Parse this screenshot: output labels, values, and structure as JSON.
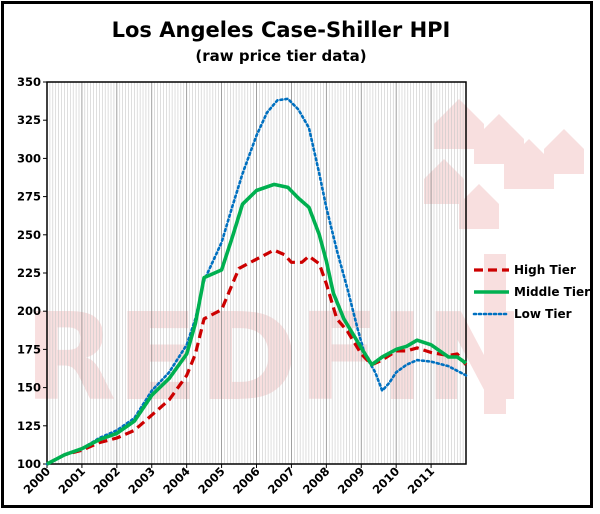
{
  "chart_data": {
    "type": "line",
    "title": "Los Angeles Case-Shiller HPI",
    "subtitle": "(raw price tier data)",
    "xlabel": "",
    "ylabel": "",
    "xlim": [
      2000,
      2012
    ],
    "ylim": [
      100,
      350
    ],
    "y_ticks": [
      "100",
      "125",
      "150",
      "175",
      "200",
      "225",
      "250",
      "275",
      "300",
      "325",
      "350"
    ],
    "x_ticks": [
      "2000",
      "2001",
      "2002",
      "2003",
      "2004",
      "2005",
      "2006",
      "2007",
      "2008",
      "2009",
      "2010",
      "2011"
    ],
    "grid": "vertical-monthly",
    "legend_position": "right",
    "series": [
      {
        "name": "High Tier",
        "color": "#cc0000",
        "style": "dashed",
        "points": [
          [
            2000,
            100
          ],
          [
            2000.5,
            106
          ],
          [
            2001,
            109
          ],
          [
            2001.5,
            114
          ],
          [
            2002,
            117
          ],
          [
            2002.5,
            122
          ],
          [
            2003,
            132
          ],
          [
            2003.5,
            142
          ],
          [
            2004,
            158
          ],
          [
            2004.25,
            172
          ],
          [
            2004.5,
            195
          ],
          [
            2005,
            201
          ],
          [
            2005.5,
            228
          ],
          [
            2006,
            234
          ],
          [
            2006.5,
            240
          ],
          [
            2006.8,
            237
          ],
          [
            2007,
            232
          ],
          [
            2007.3,
            232
          ],
          [
            2007.5,
            236
          ],
          [
            2007.8,
            231
          ],
          [
            2008,
            218
          ],
          [
            2008.3,
            195
          ],
          [
            2008.6,
            187
          ],
          [
            2009,
            172
          ],
          [
            2009.3,
            165
          ],
          [
            2009.6,
            168
          ],
          [
            2010,
            174
          ],
          [
            2010.3,
            174
          ],
          [
            2010.6,
            176
          ],
          [
            2011,
            173
          ],
          [
            2011.5,
            171
          ],
          [
            2011.75,
            172
          ],
          [
            2012,
            165
          ]
        ]
      },
      {
        "name": "Middle Tier",
        "color": "#00b050",
        "style": "solid",
        "points": [
          [
            2000,
            100
          ],
          [
            2000.5,
            106
          ],
          [
            2001,
            110
          ],
          [
            2001.5,
            116
          ],
          [
            2002,
            120
          ],
          [
            2002.5,
            128
          ],
          [
            2003,
            145
          ],
          [
            2003.5,
            156
          ],
          [
            2004,
            172
          ],
          [
            2004.25,
            192
          ],
          [
            2004.5,
            222
          ],
          [
            2004.8,
            225
          ],
          [
            2005,
            227
          ],
          [
            2005.3,
            248
          ],
          [
            2005.6,
            270
          ],
          [
            2006,
            279
          ],
          [
            2006.5,
            283
          ],
          [
            2006.9,
            281
          ],
          [
            2007.2,
            274
          ],
          [
            2007.5,
            268
          ],
          [
            2007.8,
            250
          ],
          [
            2008,
            233
          ],
          [
            2008.2,
            212
          ],
          [
            2008.5,
            195
          ],
          [
            2009,
            176
          ],
          [
            2009.3,
            165
          ],
          [
            2009.6,
            170
          ],
          [
            2010,
            175
          ],
          [
            2010.3,
            177
          ],
          [
            2010.6,
            181
          ],
          [
            2011,
            178
          ],
          [
            2011.5,
            170
          ],
          [
            2011.75,
            170
          ],
          [
            2012,
            166
          ]
        ]
      },
      {
        "name": "Low Tier",
        "color": "#0070c0",
        "style": "dotted",
        "points": [
          [
            2000,
            100
          ],
          [
            2000.5,
            106
          ],
          [
            2001,
            110
          ],
          [
            2001.5,
            117
          ],
          [
            2002,
            122
          ],
          [
            2002.5,
            130
          ],
          [
            2003,
            148
          ],
          [
            2003.5,
            160
          ],
          [
            2004,
            178
          ],
          [
            2004.25,
            195
          ],
          [
            2004.5,
            220
          ],
          [
            2005,
            245
          ],
          [
            2005.3,
            268
          ],
          [
            2005.6,
            290
          ],
          [
            2006,
            315
          ],
          [
            2006.3,
            330
          ],
          [
            2006.6,
            338
          ],
          [
            2006.9,
            339
          ],
          [
            2007.2,
            332
          ],
          [
            2007.5,
            320
          ],
          [
            2007.8,
            290
          ],
          [
            2008,
            268
          ],
          [
            2008.3,
            240
          ],
          [
            2008.6,
            215
          ],
          [
            2008.9,
            188
          ],
          [
            2009.1,
            172
          ],
          [
            2009.4,
            160
          ],
          [
            2009.6,
            148
          ],
          [
            2009.8,
            153
          ],
          [
            2010,
            160
          ],
          [
            2010.3,
            165
          ],
          [
            2010.6,
            168
          ],
          [
            2011,
            167
          ],
          [
            2011.5,
            164
          ],
          [
            2012,
            158
          ]
        ]
      }
    ]
  },
  "watermark": "REDFIN"
}
